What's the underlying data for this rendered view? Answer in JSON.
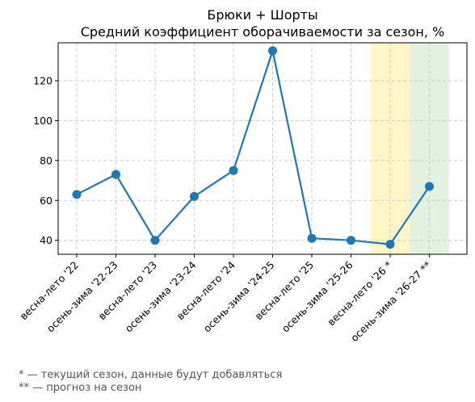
{
  "chart_data": {
    "type": "line",
    "title": "Брюки + Шорты",
    "subtitle": "Средний коэффициент оборачиваемости за сезон, %",
    "xlabel": "",
    "ylabel": "",
    "categories": [
      "весна-лето '22",
      "осень-зима '22-23",
      "весна-лето '23",
      "осень-зима '23-24",
      "весна-лето '24",
      "осень-зима '24-25",
      "весна-лето '25",
      "осень-зима '25-26",
      "весна-лето '26 *",
      "осень-зима '26-27 **"
    ],
    "series": [
      {
        "name": "",
        "values": [
          63,
          73,
          40,
          62,
          75,
          135,
          41,
          40,
          38,
          67
        ],
        "color": "#1f77b4"
      }
    ],
    "y_ticks": [
      40,
      60,
      80,
      100,
      120
    ],
    "ylim": [
      33,
      139
    ],
    "grid": true,
    "highlight_bands": [
      {
        "category_index": 8,
        "color": "#fff2b3"
      },
      {
        "category_index": 9,
        "color": "#d9ecd6"
      }
    ]
  },
  "footnotes": [
    "* — текущий сезон, данные будут добавляться",
    "** — прогноз на сезон"
  ]
}
